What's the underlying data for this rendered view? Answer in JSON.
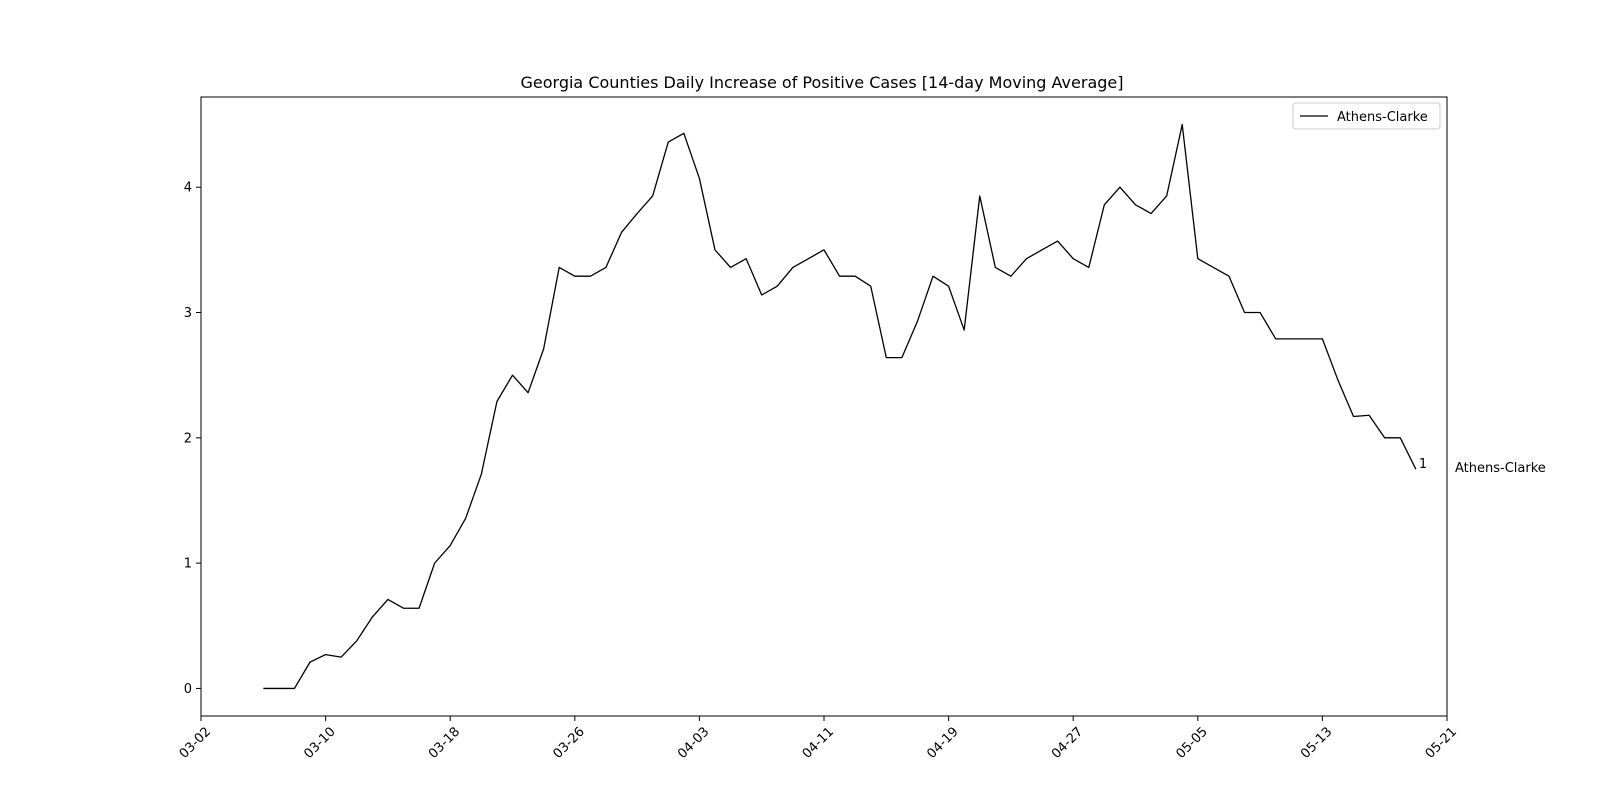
{
  "chart_data": {
    "type": "line",
    "title": "Georgia Counties Daily Increase of Positive Cases [14-day Moving Average]",
    "xlabel": "",
    "ylabel": "",
    "x_start": "03-06",
    "xlim": [
      "03-02",
      "05-21"
    ],
    "ylim": [
      -0.22,
      4.72
    ],
    "x_ticks": [
      "03-02",
      "03-10",
      "03-18",
      "03-26",
      "04-03",
      "04-11",
      "04-19",
      "04-27",
      "05-05",
      "05-13",
      "05-21"
    ],
    "y_ticks": [
      "0",
      "1",
      "2",
      "3",
      "4"
    ],
    "grid": false,
    "legend": {
      "position": "top-right",
      "entries": [
        "Athens-Clarke"
      ]
    },
    "series": [
      {
        "name": "Athens-Clarke",
        "color": "#000000",
        "values": [
          0,
          0,
          0,
          0.21,
          0.27,
          0.25,
          0.38,
          0.57,
          0.71,
          0.64,
          0.64,
          1.0,
          1.14,
          1.36,
          1.71,
          2.29,
          2.5,
          2.36,
          2.71,
          3.36,
          3.29,
          3.29,
          3.36,
          3.64,
          3.79,
          3.93,
          4.36,
          4.43,
          4.07,
          3.5,
          3.36,
          3.43,
          3.14,
          3.21,
          3.36,
          3.43,
          3.5,
          3.29,
          3.29,
          3.21,
          2.64,
          2.64,
          2.93,
          3.29,
          3.21,
          2.86,
          3.93,
          3.36,
          3.29,
          3.43,
          3.5,
          3.57,
          3.43,
          3.36,
          3.86,
          4.0,
          3.86,
          3.79,
          3.93,
          4.5,
          3.43,
          3.36,
          3.29,
          3.0,
          3.0,
          2.79,
          2.79,
          2.79,
          2.79,
          2.46,
          2.17,
          2.18,
          2.0,
          2.0,
          1.75
        ]
      }
    ],
    "annotations": [
      {
        "text": "1",
        "series": "Athens-Clarke"
      },
      {
        "text": "Athens-Clarke",
        "series": "Athens-Clarke"
      }
    ]
  }
}
